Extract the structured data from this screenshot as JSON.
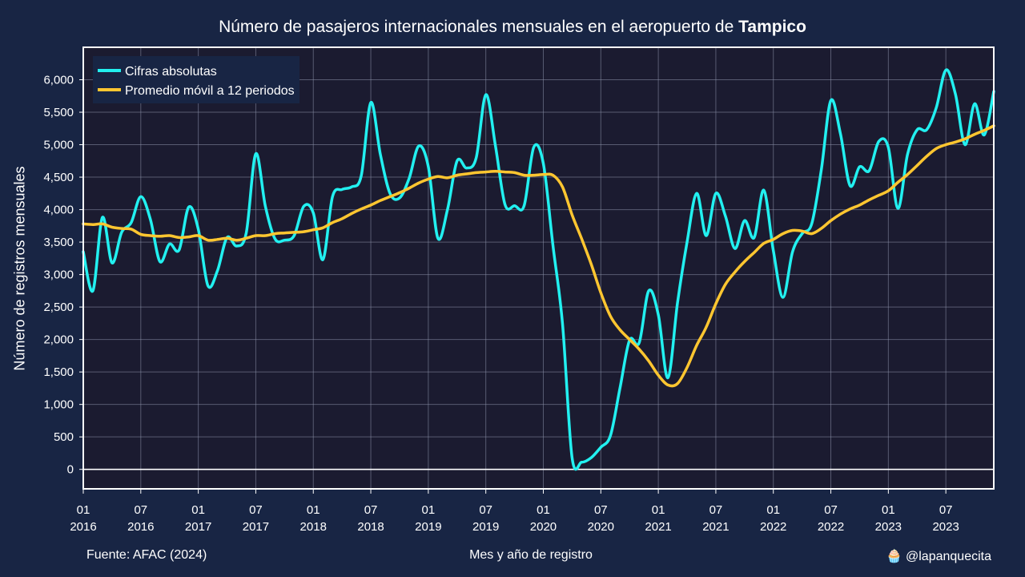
{
  "header": {
    "title_prefix": "Número de pasajeros internacionales mensuales en el aeropuerto de",
    "title_highlight": "Tampico"
  },
  "footer": {
    "source": "Fuente: AFAC (2024)",
    "xlabel": "Mes y año de registro",
    "credit": "🧁 @lapanquecita"
  },
  "colors": {
    "background": "#182544",
    "plot_background": "#1b1b30",
    "absolute": "#22f0f0",
    "moving_avg": "#ffc630"
  },
  "chart_data": {
    "type": "line",
    "title": "Número de pasajeros internacionales mensuales en el aeropuerto de Tampico",
    "xlabel": "Mes y año de registro",
    "ylabel": "Número de registros mensuales",
    "ylim": [
      -300,
      6500
    ],
    "yticks": [
      0,
      500,
      1000,
      1500,
      2000,
      2500,
      3000,
      3500,
      4000,
      4500,
      5000,
      5500,
      6000
    ],
    "ytick_labels": [
      "0",
      "500",
      "1,000",
      "1,500",
      "2,000",
      "2,500",
      "3,000",
      "3,500",
      "4,000",
      "4,500",
      "5,000",
      "5,500",
      "6,000"
    ],
    "xticks": [
      {
        "month": "01",
        "year": "2016"
      },
      {
        "month": "07",
        "year": "2016"
      },
      {
        "month": "01",
        "year": "2017"
      },
      {
        "month": "07",
        "year": "2017"
      },
      {
        "month": "01",
        "year": "2018"
      },
      {
        "month": "07",
        "year": "2018"
      },
      {
        "month": "01",
        "year": "2019"
      },
      {
        "month": "07",
        "year": "2019"
      },
      {
        "month": "01",
        "year": "2020"
      },
      {
        "month": "07",
        "year": "2020"
      },
      {
        "month": "01",
        "year": "2021"
      },
      {
        "month": "07",
        "year": "2021"
      },
      {
        "month": "01",
        "year": "2022"
      },
      {
        "month": "07",
        "year": "2022"
      },
      {
        "month": "01",
        "year": "2023"
      },
      {
        "month": "07",
        "year": "2023"
      }
    ],
    "x_start": "2016-01",
    "x_end": "2023-12",
    "grid": true,
    "legend_position": "top-left",
    "series": [
      {
        "name": "Cifras absolutas",
        "values": [
          3350,
          2750,
          3880,
          3180,
          3650,
          3800,
          4200,
          3850,
          3200,
          3470,
          3380,
          4040,
          3700,
          2830,
          3060,
          3570,
          3440,
          3640,
          4860,
          4050,
          3550,
          3530,
          3600,
          4050,
          3950,
          3230,
          4200,
          4310,
          4350,
          4520,
          5650,
          4850,
          4250,
          4180,
          4480,
          4980,
          4660,
          3560,
          4000,
          4750,
          4640,
          4800,
          5770,
          4990,
          4080,
          4060,
          4060,
          4960,
          4710,
          3450,
          2250,
          180,
          110,
          180,
          340,
          520,
          1250,
          1990,
          1950,
          2750,
          2380,
          1410,
          2560,
          3500,
          4250,
          3600,
          4250,
          3900,
          3400,
          3830,
          3570,
          4300,
          3370,
          2650,
          3350,
          3630,
          3780,
          4610,
          5680,
          5170,
          4370,
          4660,
          4600,
          5050,
          4960,
          4020,
          4850,
          5230,
          5230,
          5570,
          6150,
          5780,
          5000,
          5630,
          5150,
          5820
        ]
      },
      {
        "name": "Promedio móvil a 12 periodos",
        "values": [
          3780,
          3770,
          3780,
          3730,
          3710,
          3700,
          3620,
          3600,
          3590,
          3600,
          3570,
          3580,
          3600,
          3530,
          3540,
          3560,
          3530,
          3560,
          3600,
          3600,
          3630,
          3640,
          3650,
          3660,
          3690,
          3720,
          3800,
          3860,
          3940,
          4010,
          4070,
          4140,
          4200,
          4260,
          4330,
          4410,
          4470,
          4510,
          4490,
          4530,
          4550,
          4570,
          4580,
          4590,
          4580,
          4570,
          4530,
          4530,
          4540,
          4530,
          4350,
          3920,
          3550,
          3160,
          2720,
          2360,
          2150,
          2000,
          1850,
          1670,
          1450,
          1300,
          1320,
          1570,
          1910,
          2190,
          2550,
          2850,
          3040,
          3200,
          3340,
          3480,
          3540,
          3630,
          3680,
          3670,
          3630,
          3710,
          3830,
          3930,
          4010,
          4070,
          4150,
          4220,
          4290,
          4420,
          4540,
          4680,
          4820,
          4940,
          5000,
          5040,
          5090,
          5160,
          5220,
          5290
        ]
      }
    ]
  }
}
